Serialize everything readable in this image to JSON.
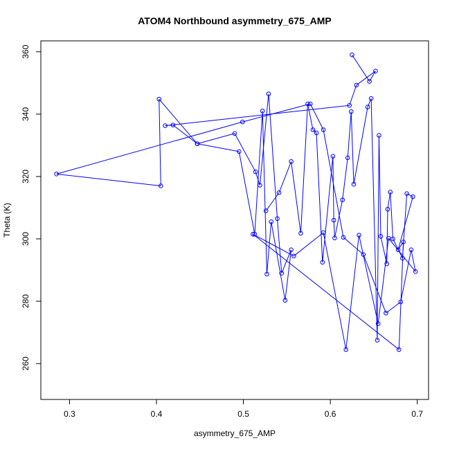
{
  "chart_data": {
    "type": "line",
    "title": "ATOM4 Northbound asymmetry_675_AMP",
    "xlabel": "asymmetry_675_AMP",
    "ylabel": "Theta (K)",
    "xlim": [
      0.267,
      0.713
    ],
    "ylim": [
      248.5,
      363.5
    ],
    "xticks": [
      0.3,
      0.4,
      0.5,
      0.6,
      0.7
    ],
    "xtick_labels": [
      "0.3",
      "0.4",
      "0.5",
      "0.6",
      "0.7"
    ],
    "yticks": [
      260,
      280,
      300,
      320,
      340,
      360
    ],
    "ytick_labels": [
      "260",
      "280",
      "300",
      "320",
      "340",
      "360"
    ],
    "grid": false,
    "marker": "open-circle",
    "color": "#0000ff",
    "series": [
      {
        "x": [
          0.625,
          0.645,
          0.652,
          0.63,
          0.622,
          0.41,
          0.419,
          0.447,
          0.49,
          0.514,
          0.519,
          0.529,
          0.539,
          0.544,
          0.555,
          0.548,
          0.532,
          0.527,
          0.522,
          0.513,
          0.495,
          0.447,
          0.403,
          0.405,
          0.285,
          0.499,
          0.577,
          0.592,
          0.615,
          0.638,
          0.664,
          0.681,
          0.693,
          0.698,
          0.667,
          0.655,
          0.633,
          0.618,
          0.592,
          0.558,
          0.511,
          0.679,
          0.684,
          0.678,
          0.695,
          0.688,
          0.683,
          0.672,
          0.669,
          0.666,
          0.665,
          0.658,
          0.656,
          0.654,
          0.647,
          0.643,
          0.627,
          0.624,
          0.62,
          0.614,
          0.605,
          0.604,
          0.603,
          0.591,
          0.584,
          0.58,
          0.574,
          0.566,
          0.555,
          0.541,
          0.526
        ],
        "y": [
          359.0,
          350.5,
          353.8,
          349.3,
          342.8,
          336.3,
          336.5,
          330.5,
          333.8,
          321.5,
          317.2,
          346.5,
          306.5,
          289.0,
          296.5,
          280.3,
          305.5,
          288.7,
          341.0,
          301.5,
          328.0,
          330.5,
          344.8,
          317.0,
          320.8,
          337.5,
          343.3,
          335.0,
          300.5,
          295.0,
          276.2,
          279.8,
          296.5,
          289.5,
          300.2,
          272.8,
          301.2,
          264.5,
          302.0,
          294.5,
          301.5,
          264.5,
          299.0,
          296.5,
          313.5,
          314.5,
          293.8,
          300.0,
          315.0,
          309.5,
          292.0,
          300.8,
          333.2,
          267.5,
          345.0,
          342.3,
          317.5,
          340.8,
          326.0,
          312.5,
          300.3,
          306.0,
          326.5,
          292.5,
          334.0,
          335.0,
          343.3,
          301.8,
          324.8,
          314.8,
          309.0
        ]
      }
    ]
  }
}
